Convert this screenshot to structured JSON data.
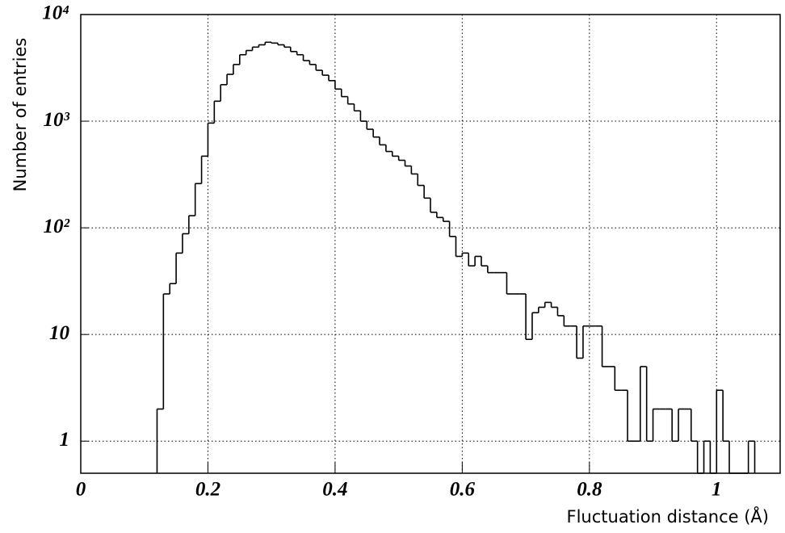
{
  "chart_data": {
    "type": "histogram",
    "xlabel": "Fluctuation distance (Å)",
    "ylabel": "Number of entries",
    "bins": [
      0.12,
      0.13,
      0.14,
      0.15,
      0.16,
      0.17,
      0.18,
      0.19,
      0.2,
      0.21,
      0.22,
      0.23,
      0.24,
      0.25,
      0.26,
      0.27,
      0.28,
      0.29,
      0.3,
      0.31,
      0.32,
      0.33,
      0.34,
      0.35,
      0.36,
      0.37,
      0.38,
      0.39,
      0.4,
      0.41,
      0.42,
      0.43,
      0.44,
      0.45,
      0.46,
      0.47,
      0.48,
      0.49,
      0.5,
      0.51,
      0.52,
      0.53,
      0.54,
      0.55,
      0.56,
      0.57,
      0.58,
      0.59,
      0.6,
      0.61,
      0.62,
      0.63,
      0.64,
      0.65,
      0.66,
      0.67,
      0.68,
      0.69,
      0.7,
      0.71,
      0.72,
      0.73,
      0.74,
      0.75,
      0.76,
      0.77,
      0.78,
      0.79,
      0.8,
      0.81,
      0.82,
      0.83,
      0.84,
      0.85,
      0.86,
      0.87,
      0.88,
      0.89,
      0.9,
      0.91,
      0.92,
      0.93,
      0.94,
      0.95,
      0.96,
      0.97,
      0.98,
      0.99,
      1.0,
      1.01,
      1.02,
      1.03,
      1.04,
      1.05,
      1.06
    ],
    "values": [
      2,
      24,
      30,
      58,
      88,
      130,
      260,
      470,
      960,
      1540,
      2200,
      2750,
      3400,
      4200,
      4600,
      4950,
      5200,
      5500,
      5400,
      5200,
      4950,
      4500,
      4200,
      3700,
      3400,
      3000,
      2700,
      2400,
      2000,
      1700,
      1450,
      1250,
      1000,
      840,
      710,
      600,
      520,
      470,
      430,
      380,
      320,
      250,
      190,
      140,
      125,
      115,
      83,
      54,
      58,
      44,
      54,
      44,
      38,
      38,
      38,
      24,
      24,
      24,
      9,
      16,
      18,
      20,
      18,
      15,
      12,
      12,
      6,
      12,
      12,
      12,
      5,
      5,
      3,
      3,
      1,
      1,
      5,
      1,
      2,
      2,
      2,
      1,
      2,
      2,
      1,
      0,
      1,
      0,
      3,
      1,
      0,
      0,
      0,
      1
    ],
    "color": "#000000",
    "xlim": [
      0,
      1.1
    ],
    "xticks": [
      0,
      0.2,
      0.4,
      0.6,
      0.8,
      1
    ],
    "ylim": [
      0.5,
      10000
    ],
    "ylog": true,
    "yticks": [
      1,
      10,
      {
        "value": 100,
        "label": "10²"
      },
      {
        "value": 1000,
        "label": "10³"
      },
      {
        "value": 10000,
        "label": "10⁴"
      }
    ],
    "grid": true
  }
}
